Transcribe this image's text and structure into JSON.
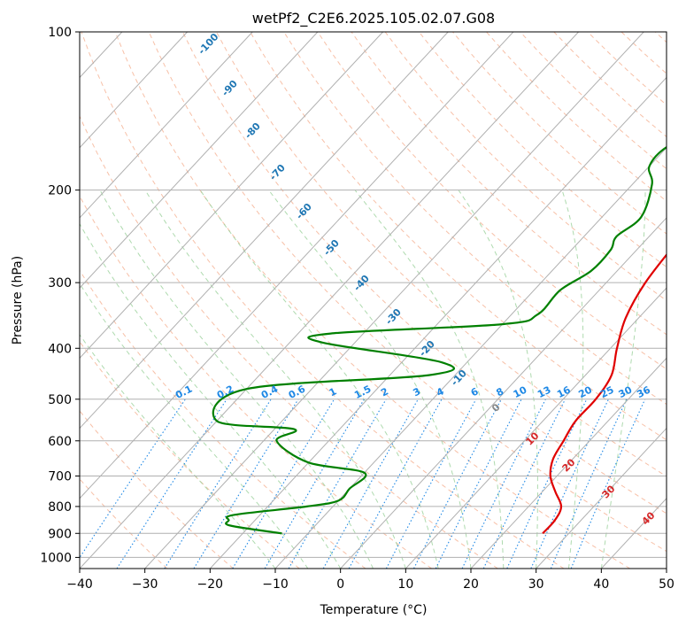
{
  "chart_data": {
    "type": "line",
    "subtype": "skew-T log-p diagram",
    "title": "wetPf2_C2E6.2025.105.02.07.G08",
    "xlabel": "Temperature (°C)",
    "ylabel": "Pressure (hPa)",
    "xlim": [
      -40,
      50
    ],
    "ylim": [
      1050,
      100
    ],
    "y_scale": "log",
    "x_ticks": [
      "−40",
      "−30",
      "−20",
      "−10",
      "0",
      "10",
      "20",
      "30",
      "40",
      "50"
    ],
    "y_ticks": [
      "100",
      "200",
      "300",
      "400",
      "500",
      "600",
      "700",
      "800",
      "900",
      "1000"
    ],
    "grid": true,
    "series": [
      {
        "color": "#e00000",
        "comment": "temperature profile",
        "points": [
          [
            26,
            900
          ],
          [
            26,
            850
          ],
          [
            25,
            800
          ],
          [
            22,
            750
          ],
          [
            19,
            700
          ],
          [
            17,
            650
          ],
          [
            16,
            600
          ],
          [
            15,
            550
          ],
          [
            15,
            500
          ],
          [
            14,
            450
          ],
          [
            11,
            400
          ],
          [
            8,
            350
          ],
          [
            6,
            300
          ],
          [
            5,
            250
          ],
          [
            4,
            200
          ],
          [
            5,
            180
          ],
          [
            6,
            160
          ],
          [
            4,
            140
          ],
          [
            6,
            120
          ],
          [
            8,
            100
          ]
        ]
      },
      {
        "color": "#008000",
        "comment": "dewpoint profile",
        "points": [
          [
            -14,
            900
          ],
          [
            -23,
            870
          ],
          [
            -24,
            850
          ],
          [
            -24,
            830
          ],
          [
            -14,
            800
          ],
          [
            -10,
            780
          ],
          [
            -10,
            740
          ],
          [
            -10,
            690
          ],
          [
            -20,
            660
          ],
          [
            -28,
            600
          ],
          [
            -27,
            570
          ],
          [
            -40,
            550
          ],
          [
            -40,
            478
          ],
          [
            -14,
            450
          ],
          [
            -14,
            425
          ],
          [
            -35,
            390
          ],
          [
            -35,
            375
          ],
          [
            -10,
            360
          ],
          [
            -6,
            345
          ],
          [
            -6,
            310
          ],
          [
            -4,
            285
          ],
          [
            -4,
            260
          ],
          [
            -5,
            245
          ],
          [
            -4,
            225
          ],
          [
            -7,
            195
          ],
          [
            -10,
            180
          ],
          [
            -10,
            165
          ],
          [
            -6,
            150
          ],
          [
            -5,
            130
          ],
          [
            -3,
            115
          ],
          [
            -1,
            100
          ]
        ]
      }
    ],
    "isotherm_labels": [
      "-100",
      "-90",
      "-80",
      "-70",
      "-60",
      "-50",
      "-40",
      "-30",
      "-20",
      "-10",
      "0"
    ],
    "mixing_ratio_labels": [
      "0.1",
      "0.2",
      "0.4",
      "0.6",
      "1",
      "1.5",
      "2",
      "3",
      "4",
      "6",
      "8",
      "10",
      "13",
      "16",
      "20",
      "25",
      "30",
      "36"
    ],
    "moist_adiabat_labels": [
      "10",
      "20",
      "30",
      "40"
    ],
    "colors": {
      "temperature": "#e00000",
      "dewpoint": "#008000",
      "isotherm_label": "#1f77b4",
      "mixing_ratio": "#1e88e5",
      "dry_adiabat": "#f4a582",
      "moist_adiabat": "#9ad19a",
      "moist_label": "#d62728",
      "grid": "#b0b0b0"
    }
  }
}
